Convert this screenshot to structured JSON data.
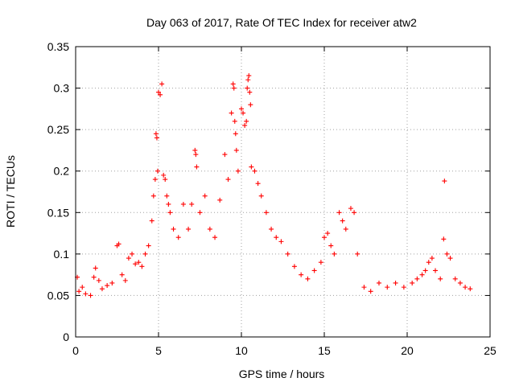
{
  "chart_data": {
    "type": "scatter",
    "title": "Day 063 of 2017, Rate Of TEC Index for receiver atw2",
    "xlabel": "GPS time / hours",
    "ylabel": "ROTI / TECUs",
    "xlim": [
      0,
      25
    ],
    "ylim": [
      0,
      0.35
    ],
    "x_ticks": [
      0,
      5,
      10,
      15,
      20,
      25
    ],
    "y_ticks": [
      0,
      0.05,
      0.1,
      0.15,
      0.2,
      0.25,
      0.3,
      0.35
    ],
    "x_tick_labels": [
      "0",
      "5",
      "10",
      "15",
      "20",
      "25"
    ],
    "y_tick_labels": [
      "0",
      "0.05",
      "0.1",
      "0.15",
      "0.2",
      "0.25",
      "0.3",
      "0.35"
    ],
    "grid": true,
    "legend": "none",
    "marker": "plus",
    "series_color": "#ff0000",
    "series": [
      {
        "points": [
          [
            0.1,
            0.072
          ],
          [
            0.2,
            0.055
          ],
          [
            0.4,
            0.06
          ],
          [
            0.6,
            0.052
          ],
          [
            0.9,
            0.05
          ],
          [
            1.1,
            0.072
          ],
          [
            1.2,
            0.083
          ],
          [
            1.4,
            0.068
          ],
          [
            1.6,
            0.058
          ],
          [
            1.9,
            0.062
          ],
          [
            2.2,
            0.065
          ],
          [
            2.5,
            0.11
          ],
          [
            2.6,
            0.112
          ],
          [
            2.8,
            0.075
          ],
          [
            3.0,
            0.068
          ],
          [
            3.2,
            0.095
          ],
          [
            3.4,
            0.1
          ],
          [
            3.6,
            0.088
          ],
          [
            3.8,
            0.09
          ],
          [
            4.0,
            0.085
          ],
          [
            4.2,
            0.1
          ],
          [
            4.4,
            0.11
          ],
          [
            4.6,
            0.14
          ],
          [
            4.7,
            0.17
          ],
          [
            4.8,
            0.19
          ],
          [
            4.85,
            0.245
          ],
          [
            4.9,
            0.24
          ],
          [
            4.95,
            0.2
          ],
          [
            5.0,
            0.295
          ],
          [
            5.1,
            0.292
          ],
          [
            5.2,
            0.305
          ],
          [
            5.3,
            0.195
          ],
          [
            5.4,
            0.19
          ],
          [
            5.5,
            0.17
          ],
          [
            5.6,
            0.16
          ],
          [
            5.7,
            0.15
          ],
          [
            5.9,
            0.13
          ],
          [
            6.2,
            0.12
          ],
          [
            6.5,
            0.16
          ],
          [
            6.8,
            0.13
          ],
          [
            7.0,
            0.16
          ],
          [
            7.2,
            0.225
          ],
          [
            7.25,
            0.22
          ],
          [
            7.3,
            0.205
          ],
          [
            7.5,
            0.15
          ],
          [
            7.8,
            0.17
          ],
          [
            8.1,
            0.13
          ],
          [
            8.4,
            0.12
          ],
          [
            8.7,
            0.165
          ],
          [
            9.0,
            0.22
          ],
          [
            9.2,
            0.19
          ],
          [
            9.4,
            0.27
          ],
          [
            9.5,
            0.305
          ],
          [
            9.55,
            0.3
          ],
          [
            9.6,
            0.26
          ],
          [
            9.65,
            0.245
          ],
          [
            9.7,
            0.225
          ],
          [
            9.8,
            0.2
          ],
          [
            10.0,
            0.275
          ],
          [
            10.1,
            0.27
          ],
          [
            10.2,
            0.255
          ],
          [
            10.3,
            0.26
          ],
          [
            10.35,
            0.3
          ],
          [
            10.4,
            0.31
          ],
          [
            10.45,
            0.315
          ],
          [
            10.5,
            0.295
          ],
          [
            10.55,
            0.28
          ],
          [
            10.6,
            0.205
          ],
          [
            10.8,
            0.2
          ],
          [
            11.0,
            0.185
          ],
          [
            11.2,
            0.17
          ],
          [
            11.5,
            0.15
          ],
          [
            11.8,
            0.13
          ],
          [
            12.1,
            0.12
          ],
          [
            12.4,
            0.115
          ],
          [
            12.8,
            0.1
          ],
          [
            13.2,
            0.085
          ],
          [
            13.6,
            0.075
          ],
          [
            14.0,
            0.07
          ],
          [
            14.4,
            0.08
          ],
          [
            14.8,
            0.09
          ],
          [
            15.0,
            0.12
          ],
          [
            15.2,
            0.125
          ],
          [
            15.4,
            0.11
          ],
          [
            15.6,
            0.1
          ],
          [
            15.9,
            0.15
          ],
          [
            16.1,
            0.14
          ],
          [
            16.3,
            0.13
          ],
          [
            16.6,
            0.155
          ],
          [
            16.8,
            0.15
          ],
          [
            17.0,
            0.1
          ],
          [
            17.4,
            0.06
          ],
          [
            17.8,
            0.055
          ],
          [
            18.3,
            0.065
          ],
          [
            18.8,
            0.06
          ],
          [
            19.3,
            0.065
          ],
          [
            19.8,
            0.06
          ],
          [
            20.3,
            0.065
          ],
          [
            20.6,
            0.07
          ],
          [
            20.9,
            0.075
          ],
          [
            21.1,
            0.08
          ],
          [
            21.3,
            0.09
          ],
          [
            21.5,
            0.095
          ],
          [
            21.7,
            0.08
          ],
          [
            22.0,
            0.07
          ],
          [
            22.2,
            0.118
          ],
          [
            22.25,
            0.188
          ],
          [
            22.4,
            0.1
          ],
          [
            22.6,
            0.095
          ],
          [
            22.9,
            0.07
          ],
          [
            23.2,
            0.065
          ],
          [
            23.5,
            0.06
          ],
          [
            23.8,
            0.058
          ]
        ]
      }
    ]
  }
}
